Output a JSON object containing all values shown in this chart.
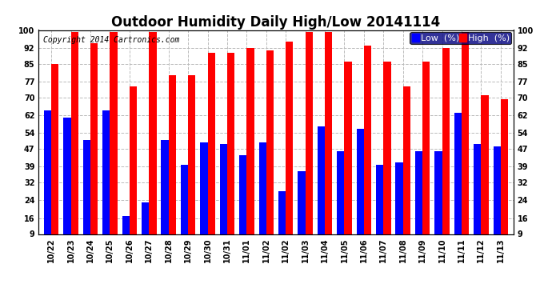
{
  "title": "Outdoor Humidity Daily High/Low 20141114",
  "copyright": "Copyright 2014 Cartronics.com",
  "legend_low": "Low  (%)",
  "legend_high": "High  (%)",
  "dates": [
    "10/22",
    "10/23",
    "10/24",
    "10/25",
    "10/26",
    "10/27",
    "10/28",
    "10/29",
    "10/30",
    "10/31",
    "11/01",
    "11/02",
    "11/02",
    "11/03",
    "11/04",
    "11/05",
    "11/06",
    "11/07",
    "11/08",
    "11/09",
    "11/10",
    "11/11",
    "11/12",
    "11/13"
  ],
  "high": [
    85,
    99,
    94,
    99,
    75,
    99,
    80,
    80,
    90,
    90,
    92,
    91,
    95,
    99,
    99,
    86,
    93,
    86,
    75,
    86,
    92,
    99,
    71,
    69
  ],
  "low": [
    64,
    61,
    51,
    64,
    17,
    23,
    51,
    40,
    50,
    49,
    44,
    50,
    28,
    37,
    57,
    46,
    56,
    40,
    41,
    46,
    46,
    63,
    49,
    48
  ],
  "bar_color_high": "#ff0000",
  "bar_color_low": "#0000ff",
  "bg_color": "#ffffff",
  "plot_bg_color": "#ffffff",
  "grid_color": "#bbbbbb",
  "yticks": [
    9,
    16,
    24,
    32,
    39,
    47,
    54,
    62,
    70,
    77,
    85,
    92,
    100
  ],
  "ymin": 9,
  "ymax": 100,
  "title_fontsize": 12,
  "copyright_fontsize": 7,
  "legend_fontsize": 8,
  "tick_fontsize": 7
}
